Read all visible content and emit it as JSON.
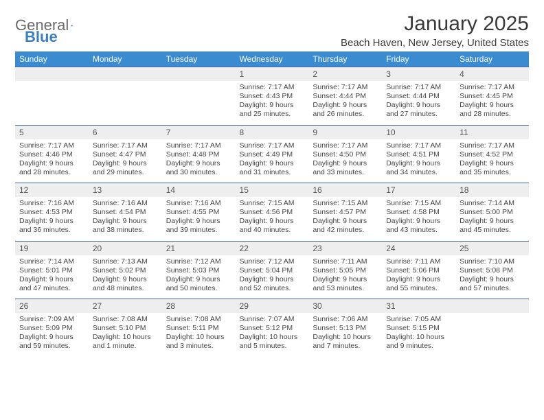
{
  "logo": {
    "text1": "General",
    "text2": "Blue"
  },
  "title": "January 2025",
  "location": "Beach Haven, New Jersey, United States",
  "colors": {
    "header_bg": "#3b8bd0",
    "header_text": "#ffffff",
    "num_bg": "#eeeeee",
    "num_border": "#4a689c",
    "logo_gray": "#6b6b6b",
    "logo_blue": "#3b7fc4"
  },
  "daynames": [
    "Sunday",
    "Monday",
    "Tuesday",
    "Wednesday",
    "Thursday",
    "Friday",
    "Saturday"
  ],
  "weeks": [
    {
      "nums": [
        "",
        "",
        "",
        "1",
        "2",
        "3",
        "4"
      ],
      "cells": [
        null,
        null,
        null,
        {
          "sunrise": "7:17 AM",
          "sunset": "4:43 PM",
          "dl1": "Daylight: 9 hours",
          "dl2": "and 25 minutes."
        },
        {
          "sunrise": "7:17 AM",
          "sunset": "4:44 PM",
          "dl1": "Daylight: 9 hours",
          "dl2": "and 26 minutes."
        },
        {
          "sunrise": "7:17 AM",
          "sunset": "4:44 PM",
          "dl1": "Daylight: 9 hours",
          "dl2": "and 27 minutes."
        },
        {
          "sunrise": "7:17 AM",
          "sunset": "4:45 PM",
          "dl1": "Daylight: 9 hours",
          "dl2": "and 28 minutes."
        }
      ]
    },
    {
      "nums": [
        "5",
        "6",
        "7",
        "8",
        "9",
        "10",
        "11"
      ],
      "cells": [
        {
          "sunrise": "7:17 AM",
          "sunset": "4:46 PM",
          "dl1": "Daylight: 9 hours",
          "dl2": "and 28 minutes."
        },
        {
          "sunrise": "7:17 AM",
          "sunset": "4:47 PM",
          "dl1": "Daylight: 9 hours",
          "dl2": "and 29 minutes."
        },
        {
          "sunrise": "7:17 AM",
          "sunset": "4:48 PM",
          "dl1": "Daylight: 9 hours",
          "dl2": "and 30 minutes."
        },
        {
          "sunrise": "7:17 AM",
          "sunset": "4:49 PM",
          "dl1": "Daylight: 9 hours",
          "dl2": "and 31 minutes."
        },
        {
          "sunrise": "7:17 AM",
          "sunset": "4:50 PM",
          "dl1": "Daylight: 9 hours",
          "dl2": "and 33 minutes."
        },
        {
          "sunrise": "7:17 AM",
          "sunset": "4:51 PM",
          "dl1": "Daylight: 9 hours",
          "dl2": "and 34 minutes."
        },
        {
          "sunrise": "7:17 AM",
          "sunset": "4:52 PM",
          "dl1": "Daylight: 9 hours",
          "dl2": "and 35 minutes."
        }
      ]
    },
    {
      "nums": [
        "12",
        "13",
        "14",
        "15",
        "16",
        "17",
        "18"
      ],
      "cells": [
        {
          "sunrise": "7:16 AM",
          "sunset": "4:53 PM",
          "dl1": "Daylight: 9 hours",
          "dl2": "and 36 minutes."
        },
        {
          "sunrise": "7:16 AM",
          "sunset": "4:54 PM",
          "dl1": "Daylight: 9 hours",
          "dl2": "and 38 minutes."
        },
        {
          "sunrise": "7:16 AM",
          "sunset": "4:55 PM",
          "dl1": "Daylight: 9 hours",
          "dl2": "and 39 minutes."
        },
        {
          "sunrise": "7:15 AM",
          "sunset": "4:56 PM",
          "dl1": "Daylight: 9 hours",
          "dl2": "and 40 minutes."
        },
        {
          "sunrise": "7:15 AM",
          "sunset": "4:57 PM",
          "dl1": "Daylight: 9 hours",
          "dl2": "and 42 minutes."
        },
        {
          "sunrise": "7:15 AM",
          "sunset": "4:58 PM",
          "dl1": "Daylight: 9 hours",
          "dl2": "and 43 minutes."
        },
        {
          "sunrise": "7:14 AM",
          "sunset": "5:00 PM",
          "dl1": "Daylight: 9 hours",
          "dl2": "and 45 minutes."
        }
      ]
    },
    {
      "nums": [
        "19",
        "20",
        "21",
        "22",
        "23",
        "24",
        "25"
      ],
      "cells": [
        {
          "sunrise": "7:14 AM",
          "sunset": "5:01 PM",
          "dl1": "Daylight: 9 hours",
          "dl2": "and 47 minutes."
        },
        {
          "sunrise": "7:13 AM",
          "sunset": "5:02 PM",
          "dl1": "Daylight: 9 hours",
          "dl2": "and 48 minutes."
        },
        {
          "sunrise": "7:12 AM",
          "sunset": "5:03 PM",
          "dl1": "Daylight: 9 hours",
          "dl2": "and 50 minutes."
        },
        {
          "sunrise": "7:12 AM",
          "sunset": "5:04 PM",
          "dl1": "Daylight: 9 hours",
          "dl2": "and 52 minutes."
        },
        {
          "sunrise": "7:11 AM",
          "sunset": "5:05 PM",
          "dl1": "Daylight: 9 hours",
          "dl2": "and 53 minutes."
        },
        {
          "sunrise": "7:11 AM",
          "sunset": "5:06 PM",
          "dl1": "Daylight: 9 hours",
          "dl2": "and 55 minutes."
        },
        {
          "sunrise": "7:10 AM",
          "sunset": "5:08 PM",
          "dl1": "Daylight: 9 hours",
          "dl2": "and 57 minutes."
        }
      ]
    },
    {
      "nums": [
        "26",
        "27",
        "28",
        "29",
        "30",
        "31",
        ""
      ],
      "cells": [
        {
          "sunrise": "7:09 AM",
          "sunset": "5:09 PM",
          "dl1": "Daylight: 9 hours",
          "dl2": "and 59 minutes."
        },
        {
          "sunrise": "7:08 AM",
          "sunset": "5:10 PM",
          "dl1": "Daylight: 10 hours",
          "dl2": "and 1 minute."
        },
        {
          "sunrise": "7:08 AM",
          "sunset": "5:11 PM",
          "dl1": "Daylight: 10 hours",
          "dl2": "and 3 minutes."
        },
        {
          "sunrise": "7:07 AM",
          "sunset": "5:12 PM",
          "dl1": "Daylight: 10 hours",
          "dl2": "and 5 minutes."
        },
        {
          "sunrise": "7:06 AM",
          "sunset": "5:13 PM",
          "dl1": "Daylight: 10 hours",
          "dl2": "and 7 minutes."
        },
        {
          "sunrise": "7:05 AM",
          "sunset": "5:15 PM",
          "dl1": "Daylight: 10 hours",
          "dl2": "and 9 minutes."
        },
        null
      ]
    }
  ],
  "labels": {
    "sunrise": "Sunrise: ",
    "sunset": "Sunset: "
  }
}
